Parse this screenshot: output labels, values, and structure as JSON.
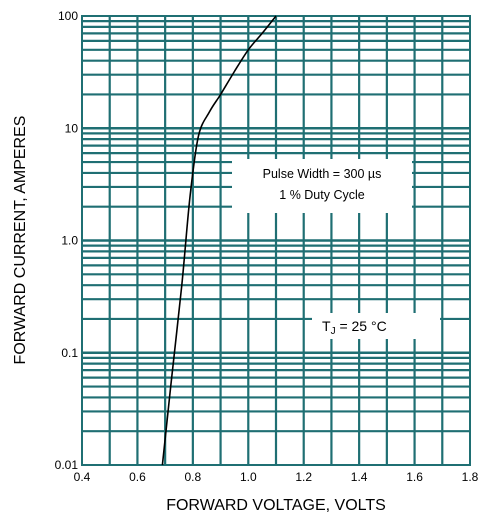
{
  "chart_data": {
    "type": "line",
    "x_scale": "linear",
    "y_scale": "log",
    "xlim": [
      0.4,
      1.8
    ],
    "ylim": [
      0.01,
      100
    ],
    "grid": true,
    "grid_color": "#1f6f73",
    "curve_color": "#000000",
    "xlabel": "FORWARD VOLTAGE, VOLTS",
    "ylabel": "FORWARD CURRENT, AMPERES",
    "x_ticks": [
      "0.4",
      "0.6",
      "0.8",
      "1.0",
      "1.2",
      "1.4",
      "1.6",
      "1.8"
    ],
    "y_ticks": [
      "0.01",
      "0.1",
      "1.0",
      "10",
      "100"
    ],
    "series": [
      {
        "x": [
          0.69,
          0.72,
          0.76,
          0.79,
          0.82,
          0.86,
          0.9,
          0.95,
          1.0,
          1.05,
          1.1
        ],
        "y": [
          0.01,
          0.05,
          0.4,
          2.5,
          8.5,
          14,
          20,
          32,
          50,
          70,
          100
        ]
      }
    ],
    "annotations": {
      "pulse_line1": "Pulse Width = 300 µs",
      "pulse_line2": "1 % Duty Cycle",
      "tj_prefix": "T",
      "tj_sub": "J",
      "tj_rest": " = 25 °C"
    }
  }
}
